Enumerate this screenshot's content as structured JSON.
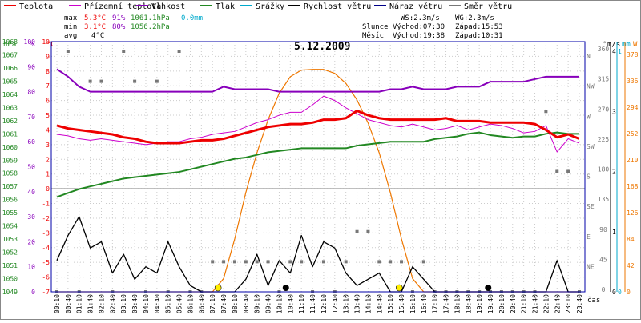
{
  "colors": {
    "teplota": "#ee0000",
    "prizemni": "#cc00cc",
    "vlhkost": "#8800bb",
    "tlak": "#228822",
    "srazky": "#00aacc",
    "rychlost": "#000000",
    "naraz": "#000088",
    "smer": "#777777",
    "sun": "#ee7700",
    "sundot": "#ffee00",
    "frame": "#0000aa"
  },
  "legend": [
    {
      "label": "Teplota",
      "color": "#ee0000"
    },
    {
      "label": "Přízemní teplota",
      "color": "#cc00cc"
    },
    {
      "label": "Vlhkost",
      "color": "#8800bb"
    },
    {
      "label": "Tlak",
      "color": "#228822"
    },
    {
      "label": "Srážky",
      "color": "#00aacc"
    },
    {
      "label": "Rychlost větru",
      "color": "#000000"
    },
    {
      "label": "Náraz větru",
      "color": "#000088"
    },
    {
      "label": "Směr větru",
      "color": "#777777"
    }
  ],
  "stats": {
    "max": {
      "label": "max",
      "temp": "5.3°C",
      "hum": "91%",
      "press": "1061.1hPa",
      "rain": "0.0mm"
    },
    "min": {
      "label": "min",
      "temp": "3.1°C",
      "hum": "80%",
      "press": "1056.2hPa"
    },
    "avg": {
      "label": "avg",
      "temp": "4°C"
    }
  },
  "info": {
    "ws": "WS:2.3m/s",
    "wg": "WG:2.3m/s",
    "sun_label": "Slunce",
    "sun_rise": "Východ:07:30",
    "sun_set": "Západ:15:53",
    "moon_label": "Měsíc",
    "moon_rise": "Východ:19:38",
    "moon_set": "Západ:10:31"
  },
  "title": "5.12.2009",
  "axes": {
    "hpa_title": "hPa",
    "pct_title": "%",
    "c_title": "°C",
    "dir_title": "°",
    "ms_title": "m/s",
    "mm_title": "mm",
    "w_title": "W",
    "x_title": "čas",
    "hpa_ticks": [
      "1068",
      "1067",
      "1066",
      "1065",
      "1064",
      "1063",
      "1062",
      "1061",
      "1060",
      "1059",
      "1058",
      "1057",
      "1056",
      "1055",
      "1054",
      "1053",
      "1052",
      "1051",
      "1050",
      "1049"
    ],
    "pct_ticks": [
      "100",
      "90",
      "80",
      "70",
      "60",
      "50",
      "40",
      "30",
      "20",
      "10",
      "0"
    ],
    "c_ticks": [
      "10",
      "9",
      "8",
      "7",
      "6",
      "5",
      "4",
      "3",
      "2",
      "1",
      "0",
      "-1",
      "-2",
      "-3",
      "-4",
      "-5",
      "-6",
      "-7"
    ],
    "dir_ticks": [
      {
        "v": "360",
        "l": "N"
      },
      {
        "v": "315",
        "l": "NW"
      },
      {
        "v": "270",
        "l": "W"
      },
      {
        "v": "225",
        "l": "SW"
      },
      {
        "v": "180",
        "l": "S"
      },
      {
        "v": "135",
        "l": "SE"
      },
      {
        "v": "90",
        "l": "E"
      },
      {
        "v": "45",
        "l": "NE"
      },
      {
        "v": "0",
        "l": ""
      }
    ],
    "ms_ticks": [
      "4",
      "3",
      "2",
      "1",
      "0"
    ],
    "mm_ticks": [
      "1",
      "0"
    ],
    "w_ticks": [
      "378",
      "336",
      "294",
      "252",
      "210",
      "168",
      "126",
      "84",
      "42",
      "0"
    ]
  },
  "chart_data": {
    "type": "line",
    "title": "5.12.2009",
    "x": [
      "00:10",
      "00:40",
      "01:10",
      "01:40",
      "02:10",
      "02:40",
      "03:10",
      "03:40",
      "04:10",
      "04:40",
      "05:10",
      "05:40",
      "06:10",
      "06:40",
      "07:10",
      "07:40",
      "08:10",
      "08:40",
      "09:10",
      "09:40",
      "10:10",
      "10:40",
      "11:10",
      "11:40",
      "12:10",
      "12:40",
      "13:10",
      "13:40",
      "14:10",
      "14:40",
      "15:10",
      "15:40",
      "16:10",
      "16:40",
      "17:10",
      "17:40",
      "18:10",
      "18:40",
      "19:10",
      "19:40",
      "20:10",
      "20:40",
      "21:10",
      "21:40",
      "22:10",
      "22:40",
      "23:10",
      "23:40"
    ],
    "series": [
      {
        "name": "Teplota",
        "unit": "°C",
        "values": [
          4.3,
          4.1,
          4.0,
          3.9,
          3.8,
          3.7,
          3.5,
          3.4,
          3.2,
          3.1,
          3.1,
          3.1,
          3.2,
          3.3,
          3.3,
          3.4,
          3.6,
          3.8,
          4.0,
          4.2,
          4.3,
          4.4,
          4.4,
          4.5,
          4.7,
          4.7,
          4.8,
          5.3,
          5.0,
          4.8,
          4.7,
          4.7,
          4.7,
          4.7,
          4.7,
          4.8,
          4.6,
          4.6,
          4.6,
          4.5,
          4.5,
          4.5,
          4.5,
          4.4,
          4.0,
          3.5,
          3.7,
          3.4
        ]
      },
      {
        "name": "Přízemní teplota",
        "unit": "°C",
        "values": [
          3.7,
          3.6,
          3.4,
          3.3,
          3.4,
          3.3,
          3.2,
          3.1,
          3.0,
          3.1,
          3.2,
          3.2,
          3.4,
          3.5,
          3.7,
          3.8,
          3.9,
          4.2,
          4.5,
          4.7,
          5.0,
          5.2,
          5.2,
          5.7,
          6.3,
          6.0,
          5.5,
          5.1,
          4.7,
          4.5,
          4.3,
          4.2,
          4.4,
          4.2,
          4.0,
          4.1,
          4.3,
          4.0,
          4.2,
          4.4,
          4.3,
          4.1,
          3.8,
          3.9,
          4.3,
          2.5,
          3.4,
          3.1
        ]
      },
      {
        "name": "Vlhkost",
        "unit": "%",
        "values": [
          89,
          86,
          82,
          80,
          80,
          80,
          80,
          80,
          80,
          80,
          80,
          80,
          80,
          80,
          80,
          82,
          81,
          81,
          81,
          81,
          80,
          80,
          80,
          80,
          80,
          80,
          80,
          80,
          80,
          80,
          81,
          81,
          82,
          81,
          81,
          81,
          82,
          82,
          82,
          84,
          84,
          84,
          84,
          85,
          86,
          86,
          86,
          86
        ]
      },
      {
        "name": "Tlak",
        "unit": "hPa",
        "values": [
          1056.2,
          1056.5,
          1056.8,
          1057.0,
          1057.2,
          1057.4,
          1057.6,
          1057.7,
          1057.8,
          1057.9,
          1058.0,
          1058.1,
          1058.3,
          1058.5,
          1058.7,
          1058.9,
          1059.1,
          1059.2,
          1059.4,
          1059.6,
          1059.7,
          1059.8,
          1059.9,
          1059.9,
          1059.9,
          1059.9,
          1059.9,
          1060.1,
          1060.2,
          1060.3,
          1060.4,
          1060.4,
          1060.4,
          1060.4,
          1060.6,
          1060.7,
          1060.8,
          1061.0,
          1061.1,
          1060.9,
          1060.8,
          1060.7,
          1060.8,
          1060.8,
          1061.0,
          1061.1,
          1061.0,
          1061.0
        ]
      },
      {
        "name": "Rychlost větru",
        "unit": "m/s",
        "values": [
          0.5,
          0.9,
          1.2,
          0.7,
          0.8,
          0.3,
          0.6,
          0.2,
          0.4,
          0.3,
          0.8,
          0.4,
          0.1,
          0.0,
          0.0,
          0.0,
          0.0,
          0.2,
          0.6,
          0.1,
          0.5,
          0.3,
          0.9,
          0.4,
          0.8,
          0.7,
          0.3,
          0.1,
          0.2,
          0.3,
          0.0,
          0.0,
          0.4,
          0.2,
          0.0,
          0.0,
          0.0,
          0.0,
          0.0,
          0.0,
          0.0,
          0.0,
          0.0,
          0.0,
          0.0,
          0.5,
          0.0,
          0.0
        ]
      },
      {
        "name": "Směr větru",
        "unit": "°",
        "values": [
          0,
          360,
          0,
          315,
          315,
          0,
          360,
          315,
          0,
          315,
          0,
          360,
          0,
          0,
          45,
          45,
          45,
          45,
          45,
          45,
          0,
          45,
          45,
          0,
          45,
          0,
          45,
          90,
          90,
          45,
          45,
          45,
          0,
          45,
          0,
          0,
          0,
          0,
          0,
          0,
          0,
          0,
          0,
          0,
          270,
          180,
          180,
          0
        ]
      },
      {
        "name": "Slunce",
        "unit": "W",
        "values": [
          0,
          0,
          0,
          0,
          0,
          0,
          0,
          0,
          0,
          0,
          0,
          0,
          0,
          0,
          0,
          20,
          80,
          150,
          210,
          260,
          300,
          325,
          335,
          336,
          336,
          330,
          315,
          290,
          255,
          210,
          150,
          80,
          20,
          0,
          0,
          0,
          0,
          0,
          0,
          0,
          0,
          0,
          0,
          0,
          0,
          0,
          0,
          0
        ]
      }
    ],
    "ylim_hpa": [
      1049,
      1068
    ],
    "ylim_pct": [
      0,
      100
    ],
    "ylim_c": [
      -7,
      10
    ],
    "ylim_dir": [
      0,
      360
    ],
    "ylim_ms": [
      0,
      4
    ],
    "ylim_w": [
      0,
      378
    ],
    "grid": true
  }
}
